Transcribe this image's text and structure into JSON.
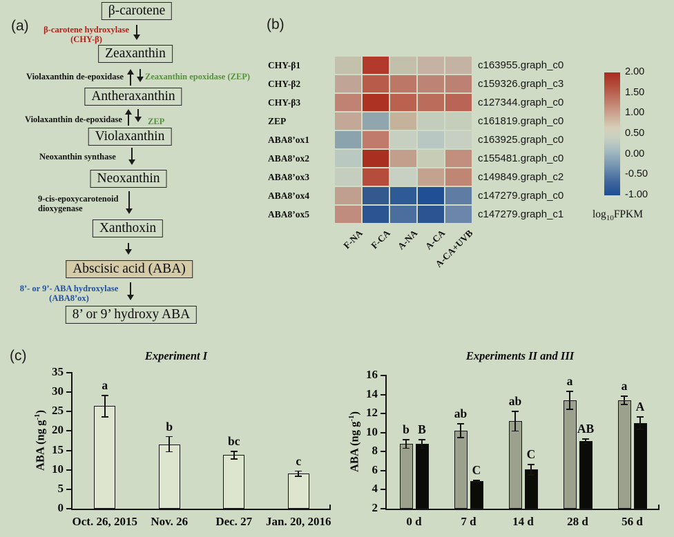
{
  "panel_a": {
    "label": "(a)",
    "nodes": [
      "β-carotene",
      "Zeaxanthin",
      "Antheraxanthin",
      "Violaxanthin",
      "Neoxanthin",
      "Xanthoxin",
      "Abscisic acid (ABA)",
      "8’ or 9’ hydroxy ABA"
    ],
    "enzymes": {
      "chy_line1": "β-carotene hydroxylase",
      "chy_line2": "(CHY-β)",
      "vde1": "Violaxanthin de-epoxidase",
      "zep1": "Zeaxanthin epoxidase (ZEP)",
      "vde2": "Violaxanthin de-epoxidase",
      "zep2": "ZEP",
      "nxs": "Neoxanthin synthase",
      "nced_line1": "9-cis-epoxycarotenoid",
      "nced_line2": "dioxygenase",
      "hyd_line1": "8’- or 9’- ABA hydroxylase",
      "hyd_line2": "(ABA8’ox)"
    },
    "colors": {
      "red_text": "#b1221a",
      "green_text": "#55913a",
      "blue_text": "#21509e",
      "aba_box_fill": "#d5cba8"
    }
  },
  "panel_b": {
    "label": "(b)"
  },
  "panel_c": {
    "label": "(c)"
  },
  "chart_data": [
    {
      "type": "heatmap",
      "genes": [
        "CHY-β1",
        "CHY-β2",
        "CHY-β3",
        "ZEP",
        "ABA8’ox1",
        "ABA8’ox2",
        "ABA8’ox3",
        "ABA8’ox4",
        "ABA8’ox5"
      ],
      "transcript_ids": [
        "c163955.graph_c0",
        "c159326.graph_c3",
        "c127344.graph_c0",
        "c161819.graph_c0",
        "c163925.graph_c0",
        "c155481.graph_c0",
        "c149849.graph_c2",
        "c147279.graph_c0",
        "c147279.graph_c1"
      ],
      "columns": [
        "F-NA",
        "F-CA",
        "A-NA",
        "A-CA",
        "A-CA+UVB"
      ],
      "values": [
        [
          0.6,
          1.9,
          0.6,
          0.8,
          0.8
        ],
        [
          0.9,
          1.5,
          1.3,
          1.2,
          1.2
        ],
        [
          1.2,
          1.9,
          1.5,
          1.4,
          1.45
        ],
        [
          0.85,
          0.0,
          0.75,
          0.45,
          0.45
        ],
        [
          -0.1,
          1.2,
          0.45,
          0.3,
          0.45
        ],
        [
          0.3,
          1.95,
          0.85,
          0.5,
          1.0
        ],
        [
          0.45,
          1.6,
          0.4,
          0.8,
          1.1
        ],
        [
          0.85,
          -0.75,
          -0.8,
          -0.9,
          -0.45
        ],
        [
          1.0,
          -0.8,
          -0.55,
          -0.8,
          -0.35
        ]
      ],
      "cell_colors": [
        [
          "#c3c0ac",
          "#b2392c",
          "#c2bfaa",
          "#c5b2a2",
          "#c4b2a3"
        ],
        [
          "#c0a495",
          "#b85b4b",
          "#bd7767",
          "#bd8475",
          "#bd8173"
        ],
        [
          "#c08373",
          "#ae3224",
          "#ba614f",
          "#bb6d5b",
          "#b96455"
        ],
        [
          "#c3a898",
          "#90a5ae",
          "#c5b29b",
          "#c3cdbb",
          "#c4ceba"
        ],
        [
          "#8ba3ac",
          "#c07b6d",
          "#c6cfc0",
          "#b9c7c3",
          "#c7cfc2"
        ],
        [
          "#bac8c2",
          "#a92f21",
          "#c29e8d",
          "#c6ccb6",
          "#c28f7f"
        ],
        [
          "#c5cebe",
          "#b54c3c",
          "#c7d0c3",
          "#c3a390",
          "#c08674"
        ],
        [
          "#c19f8f",
          "#33598f",
          "#2e5a96",
          "#204f95",
          "#5e7ca4"
        ],
        [
          "#c08c7d",
          "#2d5492",
          "#4a6e9e",
          "#2d5492",
          "#6c86a9"
        ]
      ],
      "colorbar_ticks": [
        "2.00",
        "1.50",
        "1.00",
        "0.50",
        "0.00",
        "-0.50",
        "-1.00"
      ],
      "colorbar_range": [
        -1.0,
        2.0
      ],
      "colorbar_label": {
        "pre": "log",
        "sub": "10",
        "post": "FPKM"
      }
    },
    {
      "type": "bar",
      "title": "Experiment I",
      "ylabel_pre": "ABA (ng g",
      "ylabel_sup": "-1",
      "ylabel_post": ")",
      "ylim": [
        0,
        35
      ],
      "ystep": 5,
      "categories": [
        "Oct. 26, 2015",
        "Nov. 26",
        "Dec. 27",
        "Jan. 20, 2016"
      ],
      "series": [
        {
          "color": "#dde5cf",
          "values": [
            26.4,
            16.6,
            13.8,
            9.0
          ],
          "errors": [
            2.9,
            2.1,
            1.1,
            0.8
          ],
          "letters": [
            "a",
            "b",
            "bc",
            "c"
          ]
        }
      ]
    },
    {
      "type": "bar",
      "title": "Experiments II and III",
      "ylabel_pre": "ABA (ng g",
      "ylabel_sup": "-1",
      "ylabel_post": ")",
      "ylim": [
        2,
        16
      ],
      "ystep": 2,
      "categories": [
        "0 d",
        "7 d",
        "14 d",
        "28 d",
        "56 d"
      ],
      "series": [
        {
          "color": "#9ba18c",
          "values": [
            8.8,
            10.2,
            11.2,
            13.4,
            13.4
          ],
          "errors": [
            0.5,
            0.8,
            1.1,
            1.0,
            0.5
          ],
          "letters": [
            "b",
            "ab",
            "ab",
            "a",
            "a"
          ]
        },
        {
          "color": "#0b0b08",
          "values": [
            8.8,
            4.9,
            6.1,
            9.1,
            11.0
          ],
          "errors": [
            0.5,
            0.15,
            0.6,
            0.3,
            0.7
          ],
          "letters": [
            "B",
            "C",
            "C",
            "AB",
            "A"
          ]
        }
      ]
    }
  ]
}
